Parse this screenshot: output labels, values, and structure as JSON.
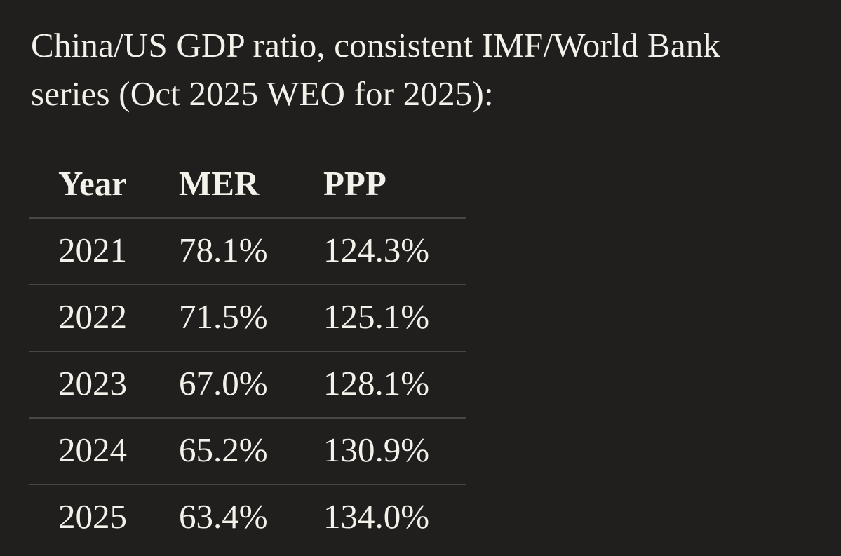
{
  "page": {
    "background_color": "#211f1e",
    "text_color": "#f4f1ea",
    "divider_color": "#4a4644"
  },
  "title": "China/US GDP ratio, consistent IMF/World Bank\nseries (Oct 2025 WEO for 2025):",
  "table": {
    "columns": [
      "Year",
      "MER",
      "PPP"
    ],
    "rows": [
      [
        "2021",
        "78.1%",
        "124.3%"
      ],
      [
        "2022",
        "71.5%",
        "125.1%"
      ],
      [
        "2023",
        "67.0%",
        "128.1%"
      ],
      [
        "2024",
        "65.2%",
        "130.9%"
      ],
      [
        "2025",
        "63.4%",
        "134.0%"
      ]
    ]
  },
  "chart_data": {
    "type": "table",
    "title": "China/US GDP ratio, consistent IMF/World Bank series (Oct 2025 WEO for 2025)",
    "categories": [
      "2021",
      "2022",
      "2023",
      "2024",
      "2025"
    ],
    "series": [
      {
        "name": "MER",
        "values": [
          78.1,
          71.5,
          67.0,
          65.2,
          63.4
        ],
        "unit": "%"
      },
      {
        "name": "PPP",
        "values": [
          124.3,
          125.1,
          128.1,
          130.9,
          134.0
        ],
        "unit": "%"
      }
    ]
  }
}
